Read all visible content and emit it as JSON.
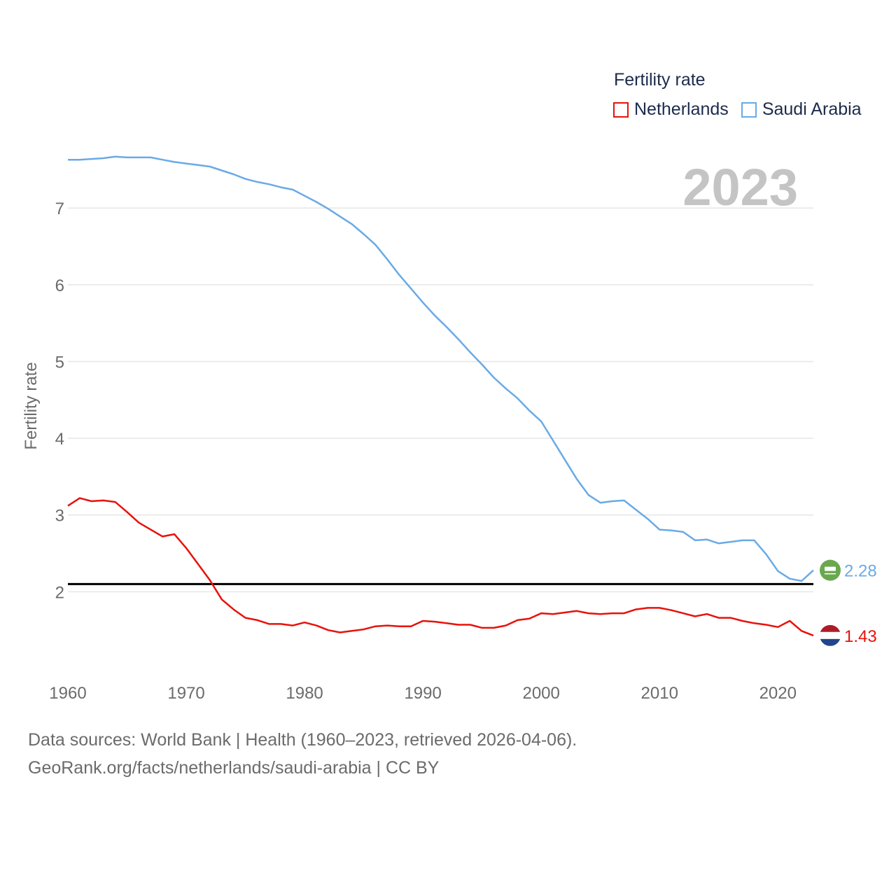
{
  "legend": {
    "title": "Fertility rate",
    "items": [
      {
        "name": "Netherlands",
        "color": "#e8120b"
      },
      {
        "name": "Saudi Arabia",
        "color": "#6aaae6"
      }
    ]
  },
  "year_label": "2023",
  "footer": {
    "line1": "Data sources: World Bank | Health (1960–2023, retrieved 2026-04-06).",
    "line2": "GeoRank.org/facts/netherlands/saudi-arabia | CC BY"
  },
  "chart_data": {
    "type": "line",
    "title": "",
    "xlabel": "",
    "ylabel": "Fertility rate",
    "xlim": [
      1960,
      2023
    ],
    "ylim": [
      1.0,
      7.75
    ],
    "xticks": [
      1960,
      1970,
      1980,
      1990,
      2000,
      2010,
      2020
    ],
    "yticks": [
      2,
      3,
      4,
      5,
      6,
      7
    ],
    "grid": true,
    "reference_line": {
      "y": 2.1,
      "color": "#000000"
    },
    "x": [
      1960,
      1961,
      1962,
      1963,
      1964,
      1965,
      1966,
      1967,
      1968,
      1969,
      1970,
      1971,
      1972,
      1973,
      1974,
      1975,
      1976,
      1977,
      1978,
      1979,
      1980,
      1981,
      1982,
      1983,
      1984,
      1985,
      1986,
      1987,
      1988,
      1989,
      1990,
      1991,
      1992,
      1993,
      1994,
      1995,
      1996,
      1997,
      1998,
      1999,
      2000,
      2001,
      2002,
      2003,
      2004,
      2005,
      2006,
      2007,
      2008,
      2009,
      2010,
      2011,
      2012,
      2013,
      2014,
      2015,
      2016,
      2017,
      2018,
      2019,
      2020,
      2021,
      2022,
      2023
    ],
    "series": [
      {
        "name": "Netherlands",
        "color": "#e8120b",
        "end_label": "1.43",
        "values": [
          3.12,
          3.22,
          3.18,
          3.19,
          3.17,
          3.04,
          2.9,
          2.81,
          2.72,
          2.75,
          2.57,
          2.36,
          2.15,
          1.9,
          1.77,
          1.66,
          1.63,
          1.58,
          1.58,
          1.56,
          1.6,
          1.56,
          1.5,
          1.47,
          1.49,
          1.51,
          1.55,
          1.56,
          1.55,
          1.55,
          1.62,
          1.61,
          1.59,
          1.57,
          1.57,
          1.53,
          1.53,
          1.56,
          1.63,
          1.65,
          1.72,
          1.71,
          1.73,
          1.75,
          1.72,
          1.71,
          1.72,
          1.72,
          1.77,
          1.79,
          1.79,
          1.76,
          1.72,
          1.68,
          1.71,
          1.66,
          1.66,
          1.62,
          1.59,
          1.57,
          1.54,
          1.62,
          1.49,
          1.43
        ]
      },
      {
        "name": "Saudi Arabia",
        "color": "#6aaae6",
        "end_label": "2.28",
        "values": [
          7.63,
          7.63,
          7.64,
          7.65,
          7.67,
          7.66,
          7.66,
          7.66,
          7.63,
          7.6,
          7.58,
          7.56,
          7.54,
          7.49,
          7.44,
          7.38,
          7.34,
          7.31,
          7.27,
          7.24,
          7.16,
          7.08,
          6.99,
          6.89,
          6.79,
          6.66,
          6.52,
          6.33,
          6.13,
          5.95,
          5.77,
          5.6,
          5.45,
          5.29,
          5.12,
          4.96,
          4.79,
          4.65,
          4.52,
          4.36,
          4.22,
          3.97,
          3.72,
          3.47,
          3.26,
          3.16,
          3.18,
          3.19,
          3.07,
          2.95,
          2.81,
          2.8,
          2.78,
          2.67,
          2.68,
          2.63,
          2.65,
          2.67,
          2.67,
          2.49,
          2.27,
          2.17,
          2.14,
          2.28
        ]
      }
    ]
  }
}
